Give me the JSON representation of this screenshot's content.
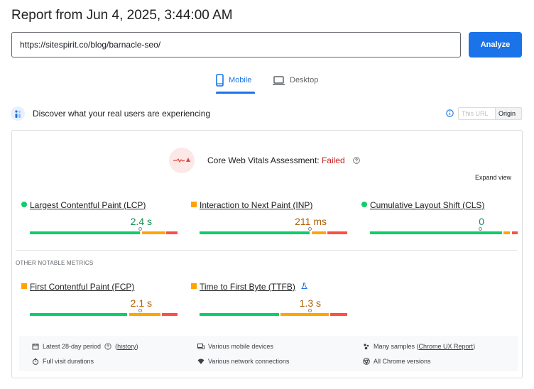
{
  "header": {
    "title": "Report from Jun 4, 2025, 3:44:00 AM",
    "url_value": "https://sitespirit.co/blog/barnacle-seo/",
    "analyze_label": "Analyze"
  },
  "tabs": [
    {
      "label": "Mobile",
      "icon": "smartphone-icon",
      "active": true
    },
    {
      "label": "Desktop",
      "icon": "laptop-icon",
      "active": false
    }
  ],
  "discover": {
    "text": "Discover what your real users are experiencing",
    "toggle": [
      "This URL",
      "Origin"
    ],
    "selected": "Origin"
  },
  "assessment": {
    "label": "Core Web Vitals Assessment: ",
    "status": "Failed",
    "expand_label": "Expand view"
  },
  "core_metrics": [
    {
      "name": "Largest Contentful Paint (LCP)",
      "value": "2.4 s",
      "rating": "good",
      "marker_pct": 74
    },
    {
      "name": "Interaction to Next Paint (INP)",
      "value": "211 ms",
      "rating": "needs-improvement",
      "marker_pct": 74
    },
    {
      "name": "Cumulative Layout Shift (CLS)",
      "value": "0",
      "rating": "good",
      "marker_pct": 75
    }
  ],
  "other": {
    "heading": "OTHER NOTABLE METRICS",
    "metrics": [
      {
        "name": "First Contentful Paint (FCP)",
        "value": "2.1 s",
        "rating": "needs-improvement",
        "marker_pct": 74
      },
      {
        "name": "Time to First Byte (TTFB)",
        "value": "1.3 s",
        "rating": "needs-improvement",
        "marker_pct": 74
      }
    ]
  },
  "footer": {
    "period": "Latest 28-day period",
    "history": "history",
    "durations": "Full visit durations",
    "devices": "Various mobile devices",
    "network": "Various network connections",
    "samples_prefix": "Many samples (",
    "samples_link": "Chrome UX Report",
    "samples_suffix": ")",
    "versions": "All Chrome versions"
  },
  "colors": {
    "accent": "#1a73e8",
    "good": "#0cce6b",
    "average": "#ffa400",
    "poor": "#ff4e42",
    "failed_text": "#c5221f"
  }
}
